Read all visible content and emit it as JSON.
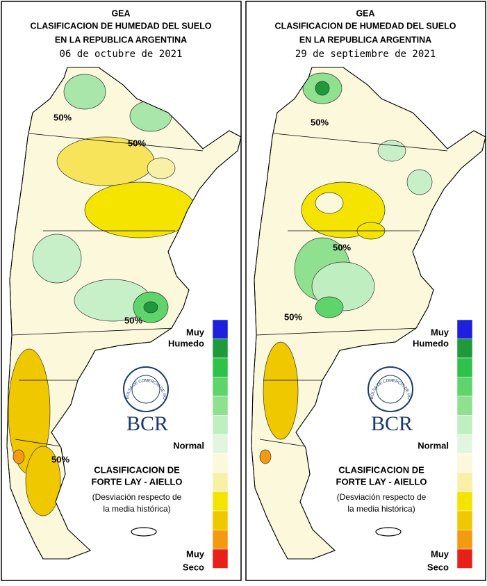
{
  "panels": [
    {
      "header": {
        "org": "GEA",
        "title_line1": "CLASIFICACION DE HUMEDAD DEL SUELO",
        "title_line2": "EN LA REPUBLICA ARGENTINA",
        "date": "06 de octubre de 2021"
      },
      "contour_labels": [
        "50%",
        "50%",
        "50%",
        "50%"
      ],
      "legend": {
        "top_1": "Muy",
        "top_2": "Humedo",
        "middle": "Normal",
        "bottom_1": "Muy",
        "bottom_2": "Seco"
      },
      "logo": {
        "name": "BCR",
        "ring": "BOLSA DE COMERCIO DE ROSARIO"
      },
      "method": {
        "line1": "CLASIFICACION DE",
        "line2": "FORTE LAY - AIELLO",
        "line3": "(Desviación respecto de",
        "line4": "la media histórica)"
      }
    },
    {
      "header": {
        "org": "GEA",
        "title_line1": "CLASIFICACION DE HUMEDAD DEL SUELO",
        "title_line2": "EN LA REPUBLICA ARGENTINA",
        "date": "29 de septiembre de 2021"
      },
      "contour_labels": [
        "50%",
        "50%",
        "50%"
      ],
      "legend": {
        "top_1": "Muy",
        "top_2": "Humedo",
        "middle": "Normal",
        "bottom_1": "Muy",
        "bottom_2": "Seco"
      },
      "logo": {
        "name": "BCR",
        "ring": "BOLSA DE COMERCIO DE ROSARIO"
      },
      "method": {
        "line1": "CLASIFICACION DE",
        "line2": "FORTE LAY - AIELLO",
        "line3": "(Desviación respecto de",
        "line4": "la media histórica)"
      }
    }
  ]
}
